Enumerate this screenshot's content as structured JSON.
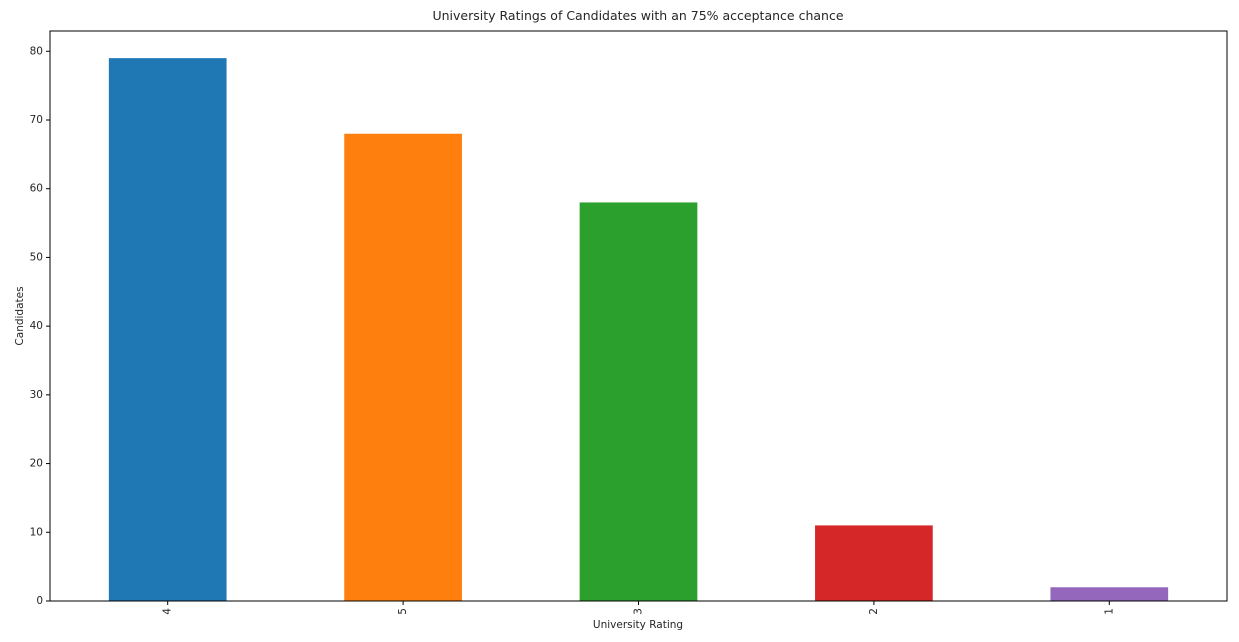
{
  "chart_data": {
    "type": "bar",
    "title": "University Ratings of Candidates with an 75% acceptance chance",
    "xlabel": "University Rating",
    "ylabel": "Candidates",
    "categories": [
      "4",
      "5",
      "3",
      "2",
      "1"
    ],
    "values": [
      79,
      68,
      58,
      11,
      2
    ],
    "colors": [
      "#1f77b4",
      "#ff7f0e",
      "#2ca02c",
      "#d62728",
      "#9467bd"
    ],
    "ylim": [
      0,
      82.95
    ],
    "yticks": [
      0,
      10,
      20,
      30,
      40,
      50,
      60,
      70,
      80
    ],
    "xtick_rotation": "vertical",
    "grid": false,
    "legend": "none"
  }
}
